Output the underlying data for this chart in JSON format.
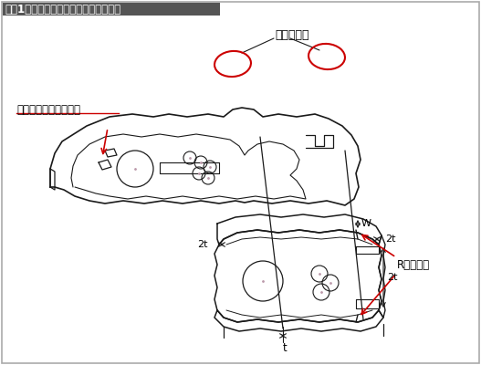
{
  "title": "『図1』抜き落とし順送り加工の注意点",
  "bg_color": "#ffffff",
  "line_color": "#1a1a1a",
  "red_color": "#cc0000",
  "ann_matching": "マッチング",
  "ann_shape": "形状の一部を先に抜く",
  "ann_no_r": "Rの無い角",
  "ann_w": "W",
  "ann_2t_a": "2t",
  "ann_2t_b": "2t",
  "ann_2t_c": "2t",
  "ann_t": "t"
}
